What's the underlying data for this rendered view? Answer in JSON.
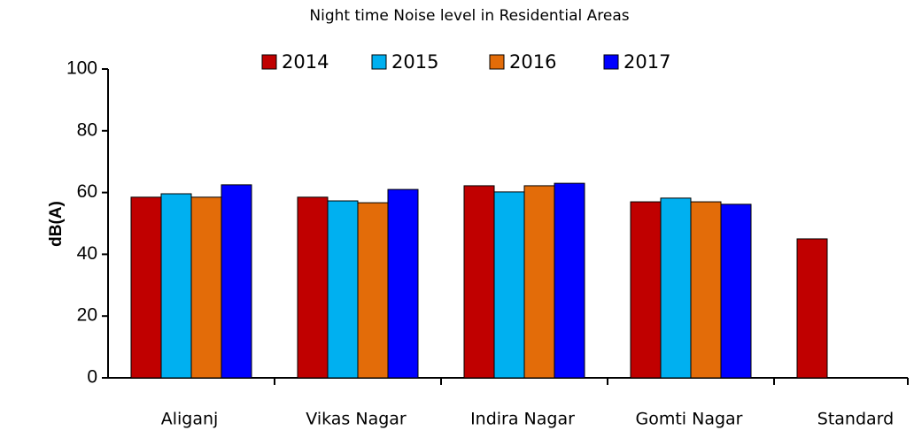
{
  "chart_data": {
    "type": "bar",
    "title": "Night time Noise level in Residential Areas",
    "y_label": "dB(A)",
    "categories": [
      "Aliganj",
      "Vikas Nagar",
      "Indira Nagar",
      "Gomti Nagar",
      "Standard"
    ],
    "series": [
      {
        "name": "2014",
        "color": "#c00000",
        "values": [
          58.5,
          58.5,
          62.2,
          57,
          45
        ]
      },
      {
        "name": "2015",
        "color": "#00b0f0",
        "values": [
          59.6,
          57.3,
          60.2,
          58.2,
          null
        ]
      },
      {
        "name": "2016",
        "color": "#e36c09",
        "values": [
          58.5,
          56.7,
          62.2,
          57,
          null
        ]
      },
      {
        "name": "2017",
        "color": "#0000ff",
        "values": [
          62.5,
          61,
          63,
          56.2,
          null
        ]
      }
    ],
    "ylim": [
      0,
      100
    ],
    "yticks": [
      0,
      20,
      40,
      60,
      80,
      100
    ],
    "legend": "top"
  }
}
